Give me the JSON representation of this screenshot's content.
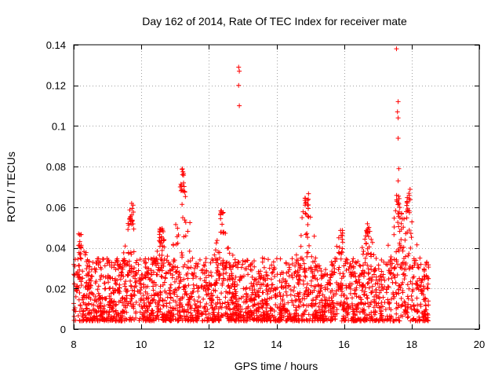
{
  "chart_data": {
    "type": "scatter",
    "title": "Day 162 of 2014, Rate Of TEC Index for receiver mate",
    "xlabel": "GPS time / hours",
    "ylabel": "ROTI / TECUs",
    "xlim": [
      8,
      20
    ],
    "ylim": [
      0,
      0.14
    ],
    "xticks": [
      8,
      10,
      12,
      14,
      16,
      18,
      20
    ],
    "yticks": [
      0,
      0.02,
      0.04,
      0.06,
      0.08,
      0.1,
      0.12,
      0.14
    ],
    "xtick_labels": [
      "8",
      "10",
      "12",
      "14",
      "16",
      "18",
      "20"
    ],
    "ytick_labels": [
      "0",
      "0.02",
      "0.04",
      "0.06",
      "0.08",
      "0.1",
      "0.12",
      "0.14"
    ],
    "grid": true,
    "marker": "+",
    "color": "#ff0000",
    "series": [
      {
        "name": "ROTI",
        "x_range": [
          8.0,
          18.5
        ],
        "typical_range": [
          0.004,
          0.035
        ],
        "bursts": [
          {
            "center": 8.2,
            "peak": 0.048
          },
          {
            "center": 9.7,
            "peak": 0.063
          },
          {
            "center": 10.6,
            "peak": 0.052
          },
          {
            "center": 11.2,
            "peak": 0.079
          },
          {
            "center": 12.4,
            "peak": 0.059
          },
          {
            "center": 14.9,
            "peak": 0.067
          },
          {
            "center": 15.9,
            "peak": 0.049
          },
          {
            "center": 16.7,
            "peak": 0.052
          },
          {
            "center": 17.6,
            "peak": 0.066
          },
          {
            "center": 17.9,
            "peak": 0.069
          }
        ],
        "outliers": [
          {
            "x": 12.88,
            "y": 0.129
          },
          {
            "x": 12.9,
            "y": 0.127
          },
          {
            "x": 12.88,
            "y": 0.12
          },
          {
            "x": 12.9,
            "y": 0.11
          },
          {
            "x": 17.55,
            "y": 0.138
          },
          {
            "x": 17.6,
            "y": 0.112
          },
          {
            "x": 17.58,
            "y": 0.107
          },
          {
            "x": 17.6,
            "y": 0.104
          },
          {
            "x": 17.6,
            "y": 0.094
          },
          {
            "x": 17.62,
            "y": 0.079
          },
          {
            "x": 17.6,
            "y": 0.073
          },
          {
            "x": 11.22,
            "y": 0.076
          },
          {
            "x": 11.25,
            "y": 0.072
          }
        ]
      }
    ]
  }
}
